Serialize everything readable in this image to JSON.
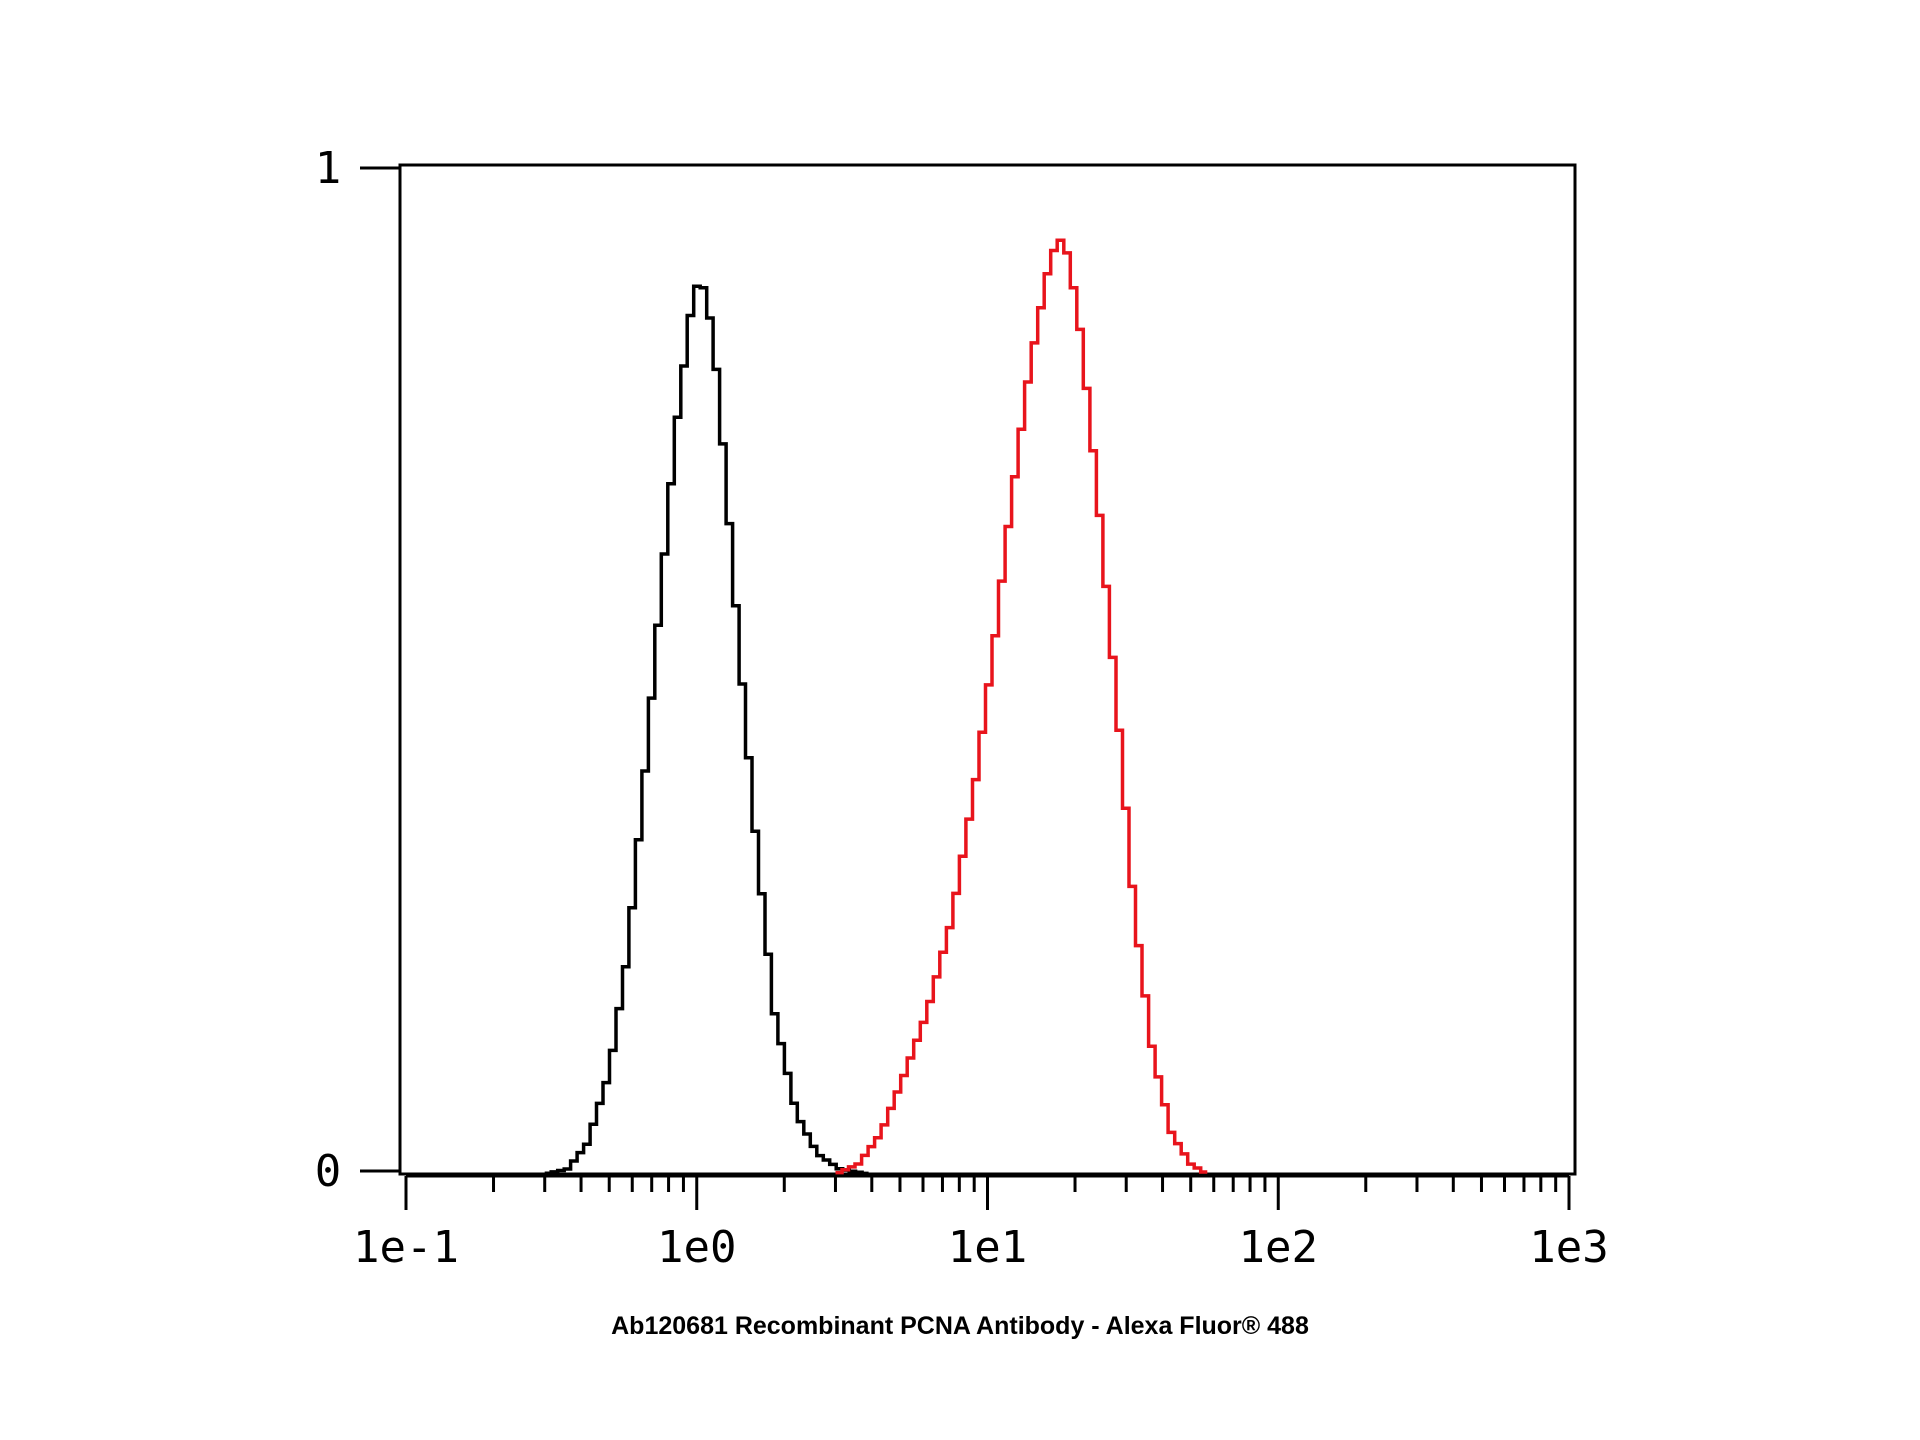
{
  "chart_data": {
    "type": "line",
    "title": "",
    "xlabel": "Ab120681 Recombinant PCNA Antibody - Alexa Fluor® 488",
    "ylabel": "",
    "x_scale": "log",
    "xlim": [
      0.1,
      1000
    ],
    "ylim": [
      0,
      1
    ],
    "x_tick_labels": [
      "1e-1",
      "1e0",
      "1e1",
      "1e2",
      "1e3"
    ],
    "x_tick_values": [
      0.1,
      1,
      10,
      100,
      1000
    ],
    "y_tick_labels": [
      "0",
      "1"
    ],
    "y_tick_values": [
      0,
      1
    ],
    "grid": false,
    "legend": "none",
    "series": [
      {
        "color": "#000000",
        "x": [
          0.3,
          0.36,
          0.42,
          0.5,
          0.58,
          0.66,
          0.75,
          0.85,
          0.95,
          1.02,
          1.08,
          1.15,
          1.25,
          1.4,
          1.6,
          1.85,
          2.2,
          2.6,
          3.1,
          3.9
        ],
        "y": [
          0.0,
          0.005,
          0.03,
          0.1,
          0.22,
          0.39,
          0.57,
          0.74,
          0.85,
          0.89,
          0.87,
          0.82,
          0.7,
          0.52,
          0.33,
          0.16,
          0.06,
          0.02,
          0.005,
          0.0
        ]
      },
      {
        "color": "#e8141c",
        "x": [
          3.0,
          3.6,
          4.3,
          5.2,
          6.2,
          7.5,
          9.0,
          10.5,
          12.0,
          14.0,
          16.0,
          17.5,
          19.0,
          21.0,
          24.0,
          28.0,
          32.0,
          37.0,
          43.0,
          50.0,
          57.0
        ],
        "y": [
          0.0,
          0.01,
          0.04,
          0.1,
          0.16,
          0.25,
          0.38,
          0.52,
          0.66,
          0.8,
          0.89,
          0.93,
          0.91,
          0.83,
          0.67,
          0.46,
          0.26,
          0.12,
          0.04,
          0.01,
          0.0
        ]
      }
    ]
  }
}
